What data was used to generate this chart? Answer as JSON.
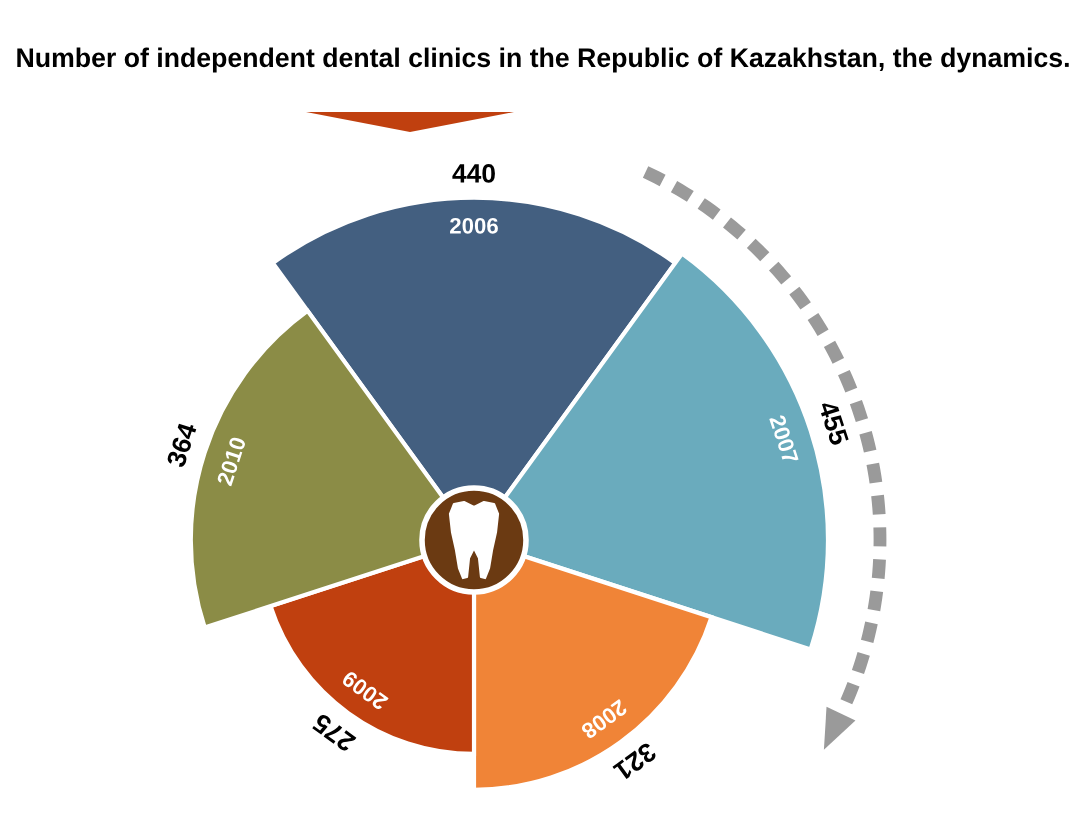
{
  "chart_data": {
    "type": "other",
    "title": "Number of independent dental clinics in the Republic of Kazakhstan, the dynamics.",
    "categories": [
      "2006",
      "2007",
      "2008",
      "2009",
      "2010"
    ],
    "values": [
      440,
      455,
      321,
      275,
      364
    ],
    "colors": [
      "#435f80",
      "#6aabbd",
      "#f08437",
      "#c0400f",
      "#8b8c46"
    ],
    "data_labels": true
  }
}
